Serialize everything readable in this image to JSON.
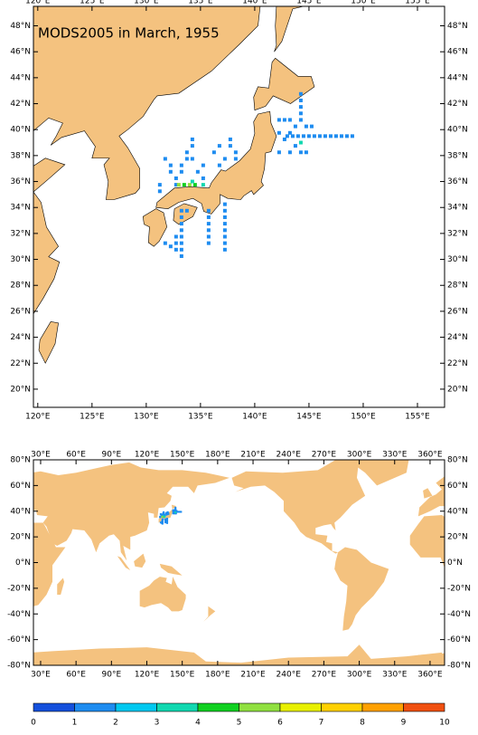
{
  "chart_data": {
    "type": "map",
    "title": "MODS2005 in March, 1955",
    "maps": [
      {
        "xlim": [
          119.6,
          157.5
        ],
        "ylim": [
          18.6,
          49.5
        ],
        "xticks": [
          {
            "value": 120,
            "label": "120°E"
          },
          {
            "value": 125,
            "label": "125°E"
          },
          {
            "value": 130,
            "label": "130°E"
          },
          {
            "value": 135,
            "label": "135°E"
          },
          {
            "value": 140,
            "label": "140°E"
          },
          {
            "value": 145,
            "label": "145°E"
          },
          {
            "value": 150,
            "label": "150°E"
          },
          {
            "value": 155,
            "label": "155°E"
          }
        ],
        "yticks": [
          {
            "value": 20,
            "label": "20°N"
          },
          {
            "value": 22,
            "label": "22°N"
          },
          {
            "value": 24,
            "label": "24°N"
          },
          {
            "value": 26,
            "label": "26°N"
          },
          {
            "value": 28,
            "label": "28°N"
          },
          {
            "value": 30,
            "label": "30°N"
          },
          {
            "value": 32,
            "label": "32°N"
          },
          {
            "value": 34,
            "label": "34°N"
          },
          {
            "value": 36,
            "label": "36°N"
          },
          {
            "value": 38,
            "label": "38°N"
          },
          {
            "value": 40,
            "label": "40°N"
          },
          {
            "value": 42,
            "label": "42°N"
          },
          {
            "value": 44,
            "label": "44°N"
          },
          {
            "value": 46,
            "label": "46°N"
          },
          {
            "value": 48,
            "label": "48°N"
          }
        ]
      },
      {
        "xlim": [
          23.9,
          372.3
        ],
        "ylim": [
          -80,
          80
        ],
        "xticks": [
          {
            "value": 30,
            "label": "30°E"
          },
          {
            "value": 60,
            "label": "60°E"
          },
          {
            "value": 90,
            "label": "90°E"
          },
          {
            "value": 120,
            "label": "120°E"
          },
          {
            "value": 150,
            "label": "150°E"
          },
          {
            "value": 180,
            "label": "180°E"
          },
          {
            "value": 210,
            "label": "210°E"
          },
          {
            "value": 240,
            "label": "240°E"
          },
          {
            "value": 270,
            "label": "270°E"
          },
          {
            "value": 300,
            "label": "300°E"
          },
          {
            "value": 330,
            "label": "330°E"
          },
          {
            "value": 360,
            "label": "360°E"
          }
        ],
        "yticks": [
          {
            "value": 80,
            "label": "80°N"
          },
          {
            "value": 60,
            "label": "60°N"
          },
          {
            "value": 40,
            "label": "40°N"
          },
          {
            "value": 20,
            "label": "20°N"
          },
          {
            "value": 0,
            "label": "0°N"
          },
          {
            "value": -20,
            "label": "-20°N"
          },
          {
            "value": -40,
            "label": "-40°N"
          },
          {
            "value": -60,
            "label": "-60°N"
          },
          {
            "value": -80,
            "label": "-80°N"
          }
        ]
      }
    ],
    "points": [
      [
        143,
        39.5,
        1
      ],
      [
        143.5,
        39.5,
        1
      ],
      [
        144,
        39.5,
        1
      ],
      [
        144.5,
        39.5,
        1
      ],
      [
        145,
        39.5,
        1
      ],
      [
        145.5,
        39.5,
        1
      ],
      [
        146,
        39.5,
        1
      ],
      [
        146.5,
        39.5,
        1
      ],
      [
        147,
        39.5,
        1
      ],
      [
        147.5,
        39.5,
        1
      ],
      [
        148,
        39.5,
        1
      ],
      [
        148.5,
        39.5,
        1
      ],
      [
        149,
        39.5,
        1
      ],
      [
        142.25,
        40.75,
        1
      ],
      [
        142.75,
        40.75,
        1
      ],
      [
        143.25,
        40.75,
        1
      ],
      [
        143.75,
        40.25,
        1
      ],
      [
        144.25,
        40.75,
        1
      ],
      [
        144.75,
        40.25,
        1
      ],
      [
        142.25,
        38.25,
        1
      ],
      [
        143.25,
        38.25,
        1
      ],
      [
        144.25,
        38.25,
        1
      ],
      [
        144.75,
        38.25,
        1
      ],
      [
        143.75,
        38.75,
        1
      ],
      [
        142.75,
        39.25,
        1
      ],
      [
        144.25,
        41.25,
        1
      ],
      [
        144.25,
        41.75,
        1
      ],
      [
        144.25,
        42.25,
        1
      ],
      [
        144.25,
        42.75,
        1
      ],
      [
        145.25,
        40.25,
        1
      ],
      [
        142.25,
        39.75,
        1
      ],
      [
        143.25,
        39.75,
        1
      ],
      [
        144.25,
        39,
        3
      ],
      [
        131.75,
        37.75,
        1
      ],
      [
        132.25,
        37.25,
        1
      ],
      [
        132.25,
        36.75,
        1
      ],
      [
        132.75,
        36.25,
        1
      ],
      [
        133.25,
        36.75,
        1
      ],
      [
        133.25,
        37.25,
        1
      ],
      [
        133.75,
        37.75,
        1
      ],
      [
        133.75,
        38.25,
        1
      ],
      [
        134.25,
        38.75,
        1
      ],
      [
        134.25,
        39.25,
        1
      ],
      [
        134.25,
        37.75,
        1
      ],
      [
        134.75,
        36.75,
        1
      ],
      [
        135.25,
        37.25,
        1
      ],
      [
        135.25,
        36.25,
        1
      ],
      [
        136.25,
        38.25,
        1
      ],
      [
        136.75,
        38.75,
        1
      ],
      [
        137.25,
        37.75,
        1
      ],
      [
        137.75,
        38.75,
        1
      ],
      [
        137.75,
        39.25,
        1
      ],
      [
        138.25,
        37.75,
        1
      ],
      [
        138.25,
        38.25,
        1
      ],
      [
        136.75,
        37.25,
        1
      ],
      [
        131.25,
        35.75,
        1
      ],
      [
        131.25,
        35.25,
        1
      ],
      [
        132.75,
        35.75,
        1
      ],
      [
        133.5,
        35.75,
        4
      ],
      [
        134,
        35.75,
        5
      ],
      [
        134.5,
        35.75,
        4
      ],
      [
        134.25,
        36,
        3
      ],
      [
        135.25,
        35.75,
        3
      ],
      [
        133,
        35.75,
        5
      ],
      [
        133.25,
        33.75,
        1
      ],
      [
        133.25,
        33.25,
        1
      ],
      [
        133.25,
        32.75,
        1
      ],
      [
        133.25,
        32.25,
        1
      ],
      [
        133.25,
        31.75,
        1
      ],
      [
        133.25,
        31.25,
        1
      ],
      [
        133.25,
        30.75,
        1
      ],
      [
        133.25,
        30.25,
        1
      ],
      [
        135.75,
        33.75,
        1
      ],
      [
        135.75,
        33.25,
        1
      ],
      [
        135.75,
        32.75,
        1
      ],
      [
        135.75,
        32.25,
        1
      ],
      [
        135.75,
        31.75,
        1
      ],
      [
        135.75,
        31.25,
        1
      ],
      [
        137.25,
        34.25,
        1
      ],
      [
        137.25,
        33.75,
        1
      ],
      [
        137.25,
        33.25,
        1
      ],
      [
        137.25,
        32.75,
        1
      ],
      [
        137.25,
        32.25,
        1
      ],
      [
        137.25,
        31.75,
        1
      ],
      [
        137.25,
        31.25,
        1
      ],
      [
        137.25,
        30.75,
        1
      ],
      [
        132.75,
        31.75,
        1
      ],
      [
        132.75,
        31.25,
        1
      ],
      [
        132.75,
        30.75,
        1
      ],
      [
        131.75,
        31.25,
        1
      ],
      [
        132.25,
        31,
        1
      ],
      [
        133.75,
        33.75,
        1
      ]
    ],
    "colorbar": {
      "ticks": [
        0,
        1,
        2,
        3,
        4,
        5,
        6,
        7,
        8,
        9,
        10
      ],
      "colors": [
        "#1450dc",
        "#1e8cf0",
        "#00c8f0",
        "#10d8b0",
        "#10d020",
        "#90e040",
        "#e8f000",
        "#ffd000",
        "#ffa000",
        "#f05010"
      ]
    }
  }
}
